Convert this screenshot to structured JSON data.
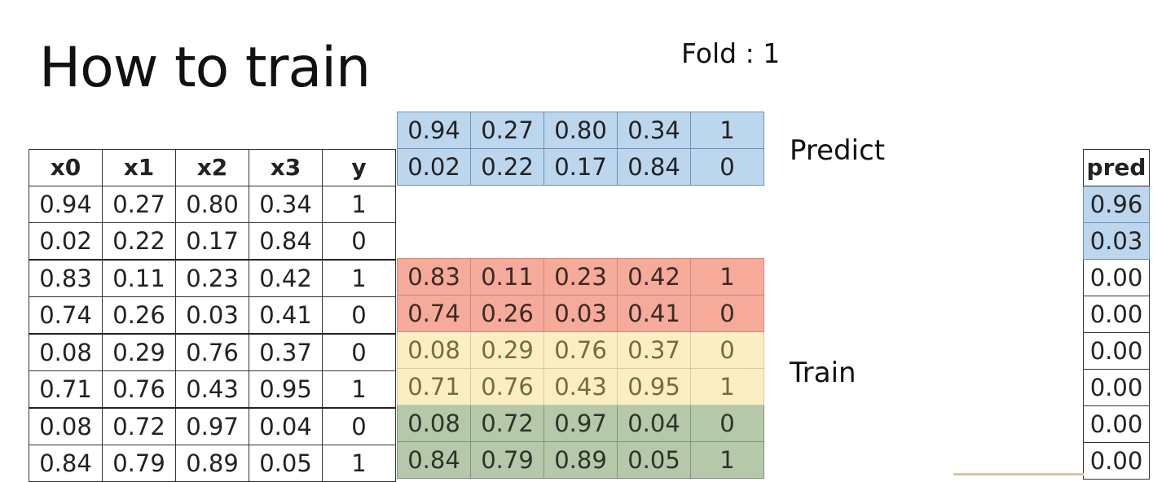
{
  "title": "How to train",
  "fold_label": "Fold : 1",
  "predict_label": "Predict",
  "train_label": "Train",
  "main_table": {
    "headers": [
      "x0",
      "x1",
      "x2",
      "x3",
      "y"
    ],
    "rows": [
      [
        "0.94",
        "0.27",
        "0.80",
        "0.34",
        "1"
      ],
      [
        "0.02",
        "0.22",
        "0.17",
        "0.84",
        "0"
      ],
      [
        "0.83",
        "0.11",
        "0.23",
        "0.42",
        "1"
      ],
      [
        "0.74",
        "0.26",
        "0.03",
        "0.41",
        "0"
      ],
      [
        "0.08",
        "0.29",
        "0.76",
        "0.37",
        "0"
      ],
      [
        "0.71",
        "0.76",
        "0.43",
        "0.95",
        "1"
      ],
      [
        "0.08",
        "0.72",
        "0.97",
        "0.04",
        "0"
      ],
      [
        "0.84",
        "0.79",
        "0.89",
        "0.05",
        "1"
      ]
    ]
  },
  "predict_rows": [
    [
      "0.94",
      "0.27",
      "0.80",
      "0.34",
      "1"
    ],
    [
      "0.02",
      "0.22",
      "0.17",
      "0.84",
      "0"
    ]
  ],
  "train_rows": [
    [
      "0.83",
      "0.11",
      "0.23",
      "0.42",
      "1"
    ],
    [
      "0.74",
      "0.26",
      "0.03",
      "0.41",
      "0"
    ],
    [
      "0.08",
      "0.29",
      "0.76",
      "0.37",
      "0"
    ],
    [
      "0.71",
      "0.76",
      "0.43",
      "0.95",
      "1"
    ],
    [
      "0.08",
      "0.72",
      "0.97",
      "0.04",
      "0"
    ],
    [
      "0.84",
      "0.79",
      "0.89",
      "0.05",
      "1"
    ]
  ],
  "pred_column": {
    "header": "pred",
    "values": [
      "0.96",
      "0.03",
      "0.00",
      "0.00",
      "0.00",
      "0.00",
      "0.00",
      "0.00"
    ]
  },
  "colors": {
    "predict": "#bcd6ee",
    "train_fold_red": "#f5aa9a",
    "train_fold_yellow": "#fbeec5",
    "train_fold_green": "#b5c8aa"
  }
}
